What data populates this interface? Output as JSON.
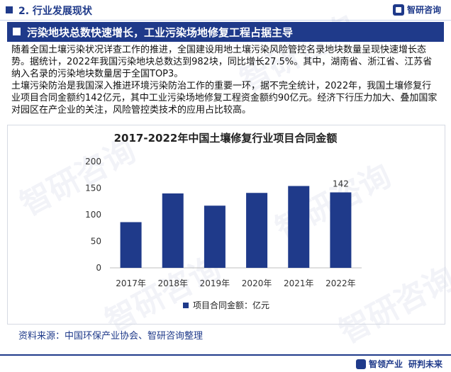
{
  "header": {
    "section_title": "2. 行业发展现状",
    "logo_text": "智研咨询"
  },
  "banner": {
    "title": "污染地块总数快速增长，工业污染场地修复工程占据主导"
  },
  "paragraphs": [
    "随着全国土壤污染状况详查工作的推进，全国建设用地土壤污染风险管控名录地块数量呈现快速增长态势。据统计，2022年我国污染地块总数达到982块，同比增长27.5%。其中，湖南省、浙江省、江苏省纳入名录的污染地块数量居于全国TOP3。",
    "土壤污染防治是我国深入推进环境污染防治工作的重要一环，据不完全统计，2022年，我国土壤修复行业项目合同金额约142亿元，其中工业污染场地修复工程资金额约90亿元。经济下行压力加大、叠加国家对园区在产企业的关注，风险管控类技术的应用占比较高。"
  ],
  "source": "资料来源：中国环保产业协会、智研咨询整理",
  "footer": {
    "logo_text": "智领产业",
    "tagline": "研判未来"
  },
  "watermark": "智研咨询",
  "colors": {
    "brand": "#1f3a8a",
    "bar": "#1f3a8a"
  },
  "chart_data": {
    "type": "bar",
    "title": "2017-2022年中国土壤修复行业项目合同金额",
    "categories": [
      "2017年",
      "2018年",
      "2019年",
      "2020年",
      "2021年",
      "2022年"
    ],
    "series": [
      {
        "name": "项目合同金额：亿元",
        "values": [
          86,
          140,
          117,
          141,
          154,
          142
        ]
      }
    ],
    "data_labels": [
      null,
      null,
      null,
      null,
      null,
      "142"
    ],
    "y_ticks": [
      "0",
      "50",
      "100",
      "150",
      "200"
    ],
    "ylim": [
      0,
      200
    ],
    "grid": false,
    "legend_position": "bottom"
  }
}
